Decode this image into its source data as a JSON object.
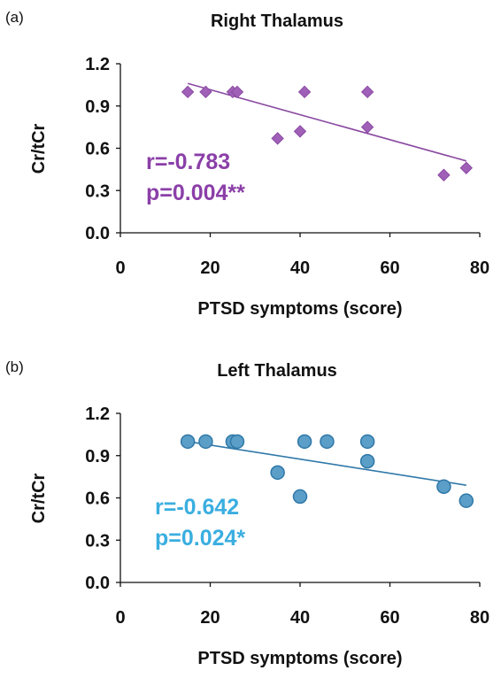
{
  "chart_data": [
    {
      "type": "scatter",
      "panel_label": "(a)",
      "title": "Right Thalamus",
      "xlabel": "PTSD symptoms (score)",
      "ylabel": "Cr/tCr",
      "xlim": [
        0,
        80
      ],
      "ylim": [
        0,
        1.2
      ],
      "xticks": [
        "0",
        "20",
        "40",
        "60",
        "80"
      ],
      "yticks": [
        "0.0",
        "0.3",
        "0.6",
        "0.9",
        "1.2"
      ],
      "marker": "diamond",
      "color": "#a060b8",
      "stroke": "#8a4aa2",
      "series": [
        {
          "x": [
            15,
            19,
            25,
            26,
            35,
            40,
            41,
            55,
            55,
            72,
            77
          ],
          "y": [
            1.0,
            1.0,
            1.0,
            1.0,
            0.67,
            0.72,
            1.0,
            1.0,
            0.75,
            0.41,
            0.46
          ]
        }
      ],
      "trendline": {
        "x": [
          15,
          77
        ],
        "y": [
          1.06,
          0.51
        ]
      },
      "annotation": {
        "r": "r=-0.783",
        "p": "p=0.004**",
        "color": "#8b3fa8"
      },
      "grid": false
    },
    {
      "type": "scatter",
      "panel_label": "(b)",
      "title": "Left Thalamus",
      "xlabel": "PTSD symptoms (score)",
      "ylabel": "Cr/tCr",
      "xlim": [
        0,
        80
      ],
      "ylim": [
        0,
        1.2
      ],
      "xticks": [
        "0",
        "20",
        "40",
        "60",
        "80"
      ],
      "yticks": [
        "0.0",
        "0.3",
        "0.6",
        "0.9",
        "1.2"
      ],
      "marker": "circle",
      "color": "#5b9ec7",
      "stroke": "#2f78a8",
      "series": [
        {
          "x": [
            15,
            19,
            25,
            26,
            35,
            40,
            41,
            46,
            55,
            55,
            72,
            77
          ],
          "y": [
            1.0,
            1.0,
            1.0,
            1.0,
            0.78,
            0.61,
            1.0,
            1.0,
            1.0,
            0.86,
            0.68,
            0.58
          ]
        }
      ],
      "trendline": {
        "x": [
          15,
          77
        ],
        "y": [
          1.0,
          0.69
        ]
      },
      "annotation": {
        "r": "r=-0.642",
        "p": "p=0.024*",
        "color": "#3aaee0"
      },
      "grid": false
    }
  ]
}
